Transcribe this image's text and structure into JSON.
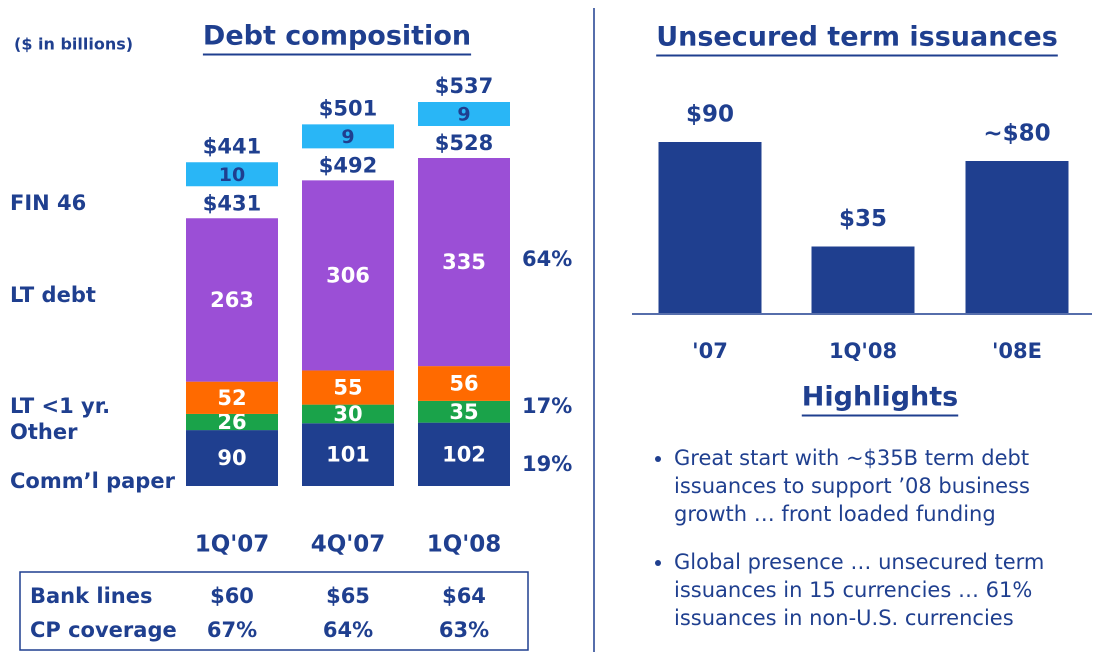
{
  "units_label": "($ in billions)",
  "chart_data": [
    {
      "type": "stacked_bar",
      "title": "Debt composition",
      "categories": [
        "1Q'07",
        "4Q'07",
        "1Q'08"
      ],
      "series": [
        {
          "name": "Comm’l paper",
          "color": "#1f3f8f",
          "values": [
            90,
            101,
            102
          ]
        },
        {
          "name": "Other",
          "color": "#1aa34a",
          "values": [
            26,
            30,
            35
          ]
        },
        {
          "name": "LT <1 yr.",
          "color": "#ff6a00",
          "values": [
            52,
            55,
            56
          ]
        },
        {
          "name": "LT debt",
          "color": "#9b4fd6",
          "values": [
            263,
            306,
            335
          ]
        },
        {
          "name": "FIN 46",
          "color": "#29b6f6",
          "values": [
            10,
            9,
            9
          ]
        }
      ],
      "subtotal_labels": [
        "$431",
        "$492",
        "$528"
      ],
      "total_labels": [
        "$441",
        "$501",
        "$537"
      ],
      "share_labels": [
        "64%",
        "17%",
        "19%"
      ]
    },
    {
      "type": "bar",
      "title": "Unsecured term issuances",
      "categories": [
        "'07",
        "1Q'08",
        "'08E"
      ],
      "values": [
        90,
        35,
        80
      ],
      "value_labels": [
        "$90",
        "$35",
        "~$80"
      ],
      "color": "#1f3f8f"
    }
  ],
  "table": {
    "rows": [
      [
        "Bank lines",
        "$60",
        "$65",
        "$64"
      ],
      [
        "CP coverage",
        "67%",
        "64%",
        "63%"
      ]
    ]
  },
  "highlights": {
    "title": "Highlights",
    "items": [
      "Great start with ~$35B term debt issuances to support ’08 business growth … front loaded funding",
      "Global presence … unsecured term issuances in 15 currencies … 61% issuances in non-U.S. currencies"
    ]
  }
}
